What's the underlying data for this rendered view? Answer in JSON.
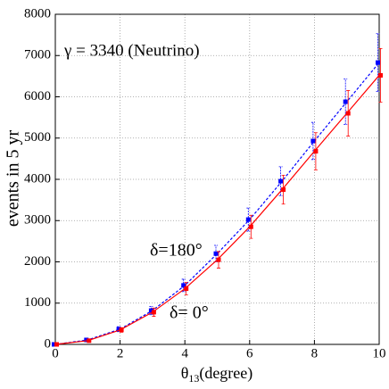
{
  "chart_data": {
    "type": "line",
    "x": [
      0,
      1,
      2,
      3,
      4,
      5,
      6,
      7,
      8,
      9,
      10
    ],
    "series": [
      {
        "name": "δ=180°",
        "color": "#0000ff",
        "dash": true,
        "values": [
          0,
          108,
          370,
          820,
          1430,
          2200,
          3025,
          3955,
          4930,
          5880,
          6830
        ],
        "errors": [
          0,
          25,
          60,
          100,
          150,
          200,
          280,
          350,
          450,
          550,
          700
        ]
      },
      {
        "name": "δ= 0°",
        "color": "#ff0000",
        "dash": false,
        "values": [
          0,
          90,
          350,
          780,
          1350,
          2050,
          2850,
          3750,
          4680,
          5600,
          6520
        ],
        "errors": [
          0,
          25,
          55,
          100,
          150,
          200,
          280,
          350,
          450,
          550,
          650
        ]
      }
    ],
    "annotation": "γ = 3340 (Neutrino)",
    "x_label": [
      "θ",
      "13",
      "(degree)"
    ],
    "y_label": "events in 5 yr",
    "xlim": [
      0,
      10
    ],
    "xticks": [
      0,
      2,
      4,
      6,
      8,
      10
    ],
    "ylim": [
      0,
      8000
    ],
    "yticks": [
      0,
      1000,
      2000,
      3000,
      4000,
      5000,
      6000,
      7000,
      8000
    ],
    "grid": true
  }
}
